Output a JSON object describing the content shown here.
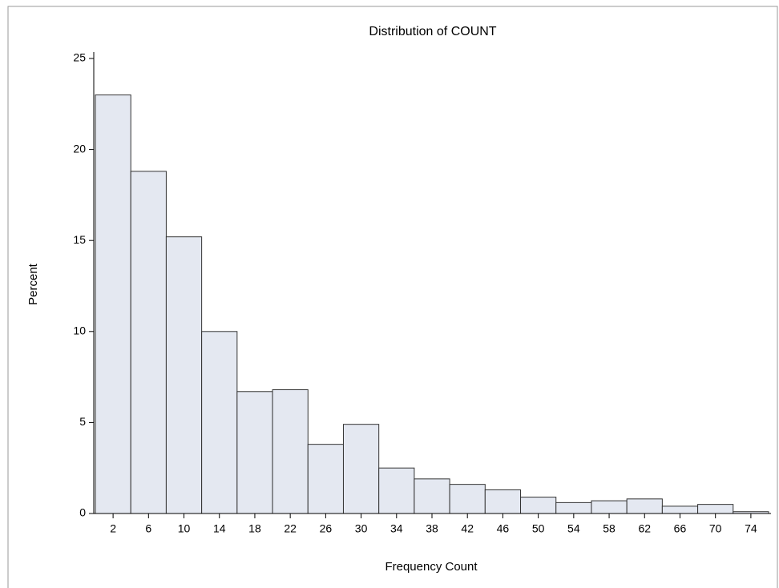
{
  "chart_data": {
    "type": "histogram",
    "title": "Distribution of COUNT",
    "x_label": "Frequency Count",
    "y_label": "Percent",
    "bins": [
      0,
      4,
      8,
      12,
      16,
      20,
      24,
      28,
      32,
      36,
      40,
      44,
      48,
      52,
      56,
      60,
      64,
      68,
      72,
      76
    ],
    "values": [
      23.0,
      18.8,
      15.2,
      10.0,
      6.7,
      6.8,
      3.8,
      4.9,
      2.5,
      1.9,
      1.6,
      1.3,
      0.9,
      0.6,
      0.7,
      0.8,
      0.4,
      0.5,
      0.1
    ],
    "color": "#e4e8f1",
    "xlim": [
      0,
      76
    ],
    "xticks": [
      2,
      6,
      10,
      14,
      18,
      22,
      26,
      30,
      34,
      38,
      42,
      46,
      50,
      54,
      58,
      62,
      66,
      70,
      74
    ],
    "ylim": [
      0,
      25
    ],
    "yticks": [
      0,
      5,
      10,
      15,
      20,
      25
    ],
    "grid": false
  }
}
